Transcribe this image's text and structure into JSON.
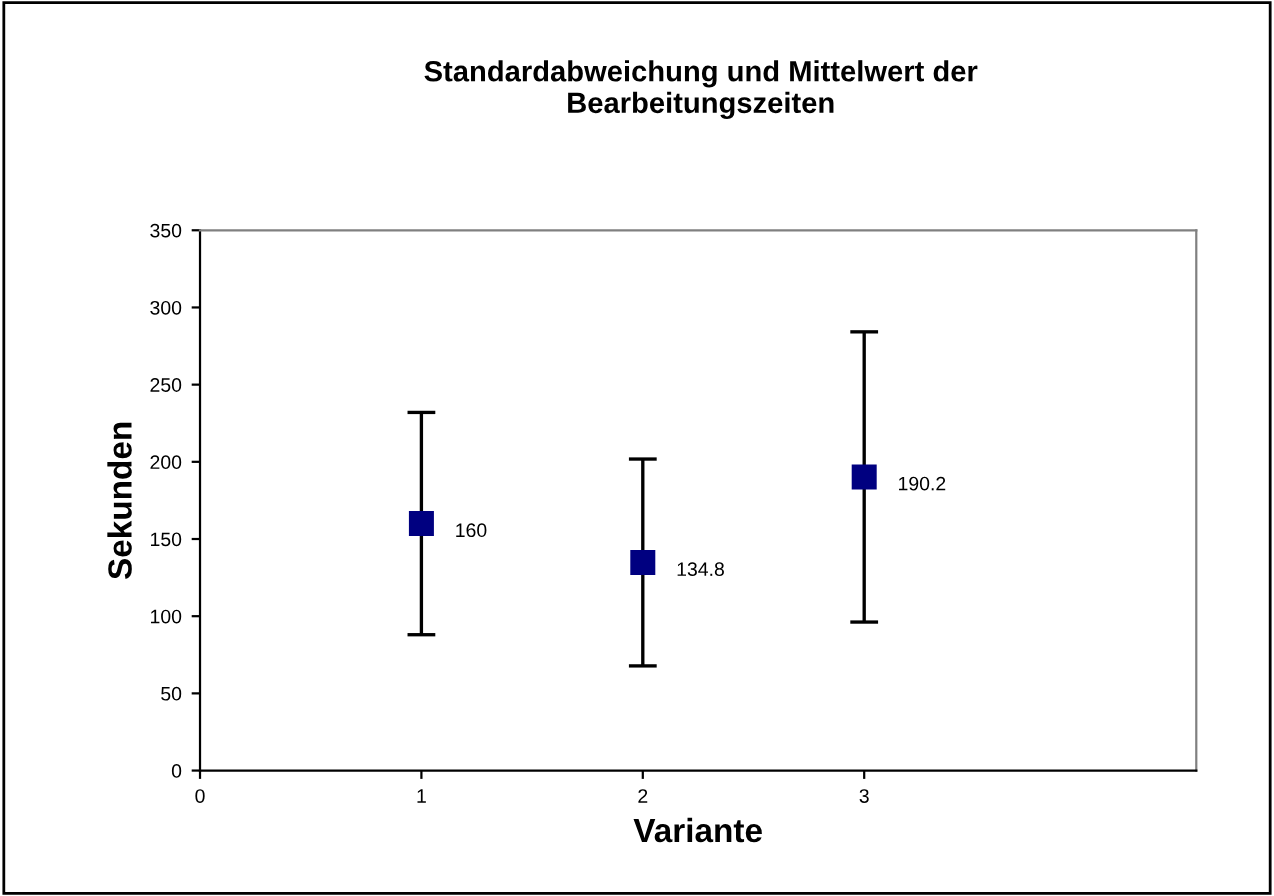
{
  "chart_data": {
    "type": "scatter",
    "title": "Standardabweichung und Mittelwert der\nBearbeitungszeiten",
    "xlabel": "Variante",
    "ylabel": "Sekunden",
    "x": [
      1,
      2,
      3
    ],
    "series": [
      {
        "color": "#000080",
        "values": [
          160,
          134.8,
          190.2
        ],
        "errors": [
          72,
          67,
          94
        ]
      }
    ],
    "data_labels": true,
    "marker": "square",
    "grid": false,
    "legend": false,
    "xlim": [
      0,
      4.5
    ],
    "xticks": [
      0,
      1,
      2,
      3
    ],
    "ylim": [
      0,
      350
    ],
    "yticks": [
      0,
      50,
      100,
      150,
      200,
      250,
      300,
      350
    ]
  }
}
